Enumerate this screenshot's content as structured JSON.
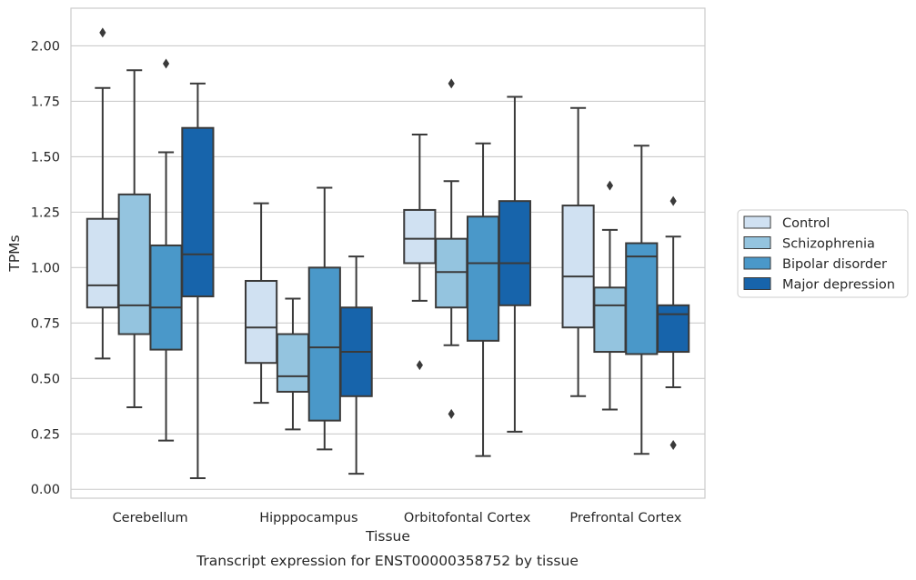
{
  "chart_data": {
    "type": "boxplot",
    "caption": "Transcript expression for ENST00000358752 by tissue",
    "xlabel": "Tissue",
    "ylabel": "TPMs",
    "ylim": [
      -0.04,
      2.17
    ],
    "yticks": [
      0.0,
      0.25,
      0.5,
      0.75,
      1.0,
      1.25,
      1.5,
      1.75,
      2.0
    ],
    "ytick_labels": [
      "0.00",
      "0.25",
      "0.50",
      "0.75",
      "1.00",
      "1.25",
      "1.50",
      "1.75",
      "2.00"
    ],
    "grid": true,
    "legend_position": "right",
    "categories": [
      "Cerebellum",
      "Hipppocampus",
      "Orbitofontal Cortex",
      "Prefrontal Cortex"
    ],
    "series": [
      {
        "name": "Control",
        "color": "#d0e1f2",
        "boxes": [
          {
            "whisker_low": 0.59,
            "q1": 0.82,
            "median": 0.92,
            "q3": 1.22,
            "whisker_high": 1.81,
            "outliers": [
              2.06
            ]
          },
          {
            "whisker_low": 0.39,
            "q1": 0.57,
            "median": 0.73,
            "q3": 0.94,
            "whisker_high": 1.29,
            "outliers": []
          },
          {
            "whisker_low": 0.85,
            "q1": 1.02,
            "median": 1.13,
            "q3": 1.26,
            "whisker_high": 1.6,
            "outliers": [
              0.56
            ]
          },
          {
            "whisker_low": 0.42,
            "q1": 0.73,
            "median": 0.96,
            "q3": 1.28,
            "whisker_high": 1.72,
            "outliers": []
          }
        ]
      },
      {
        "name": "Schizophrenia",
        "color": "#94c4df",
        "boxes": [
          {
            "whisker_low": 0.37,
            "q1": 0.7,
            "median": 0.83,
            "q3": 1.33,
            "whisker_high": 1.89,
            "outliers": []
          },
          {
            "whisker_low": 0.27,
            "q1": 0.44,
            "median": 0.51,
            "q3": 0.7,
            "whisker_high": 0.86,
            "outliers": []
          },
          {
            "whisker_low": 0.65,
            "q1": 0.82,
            "median": 0.98,
            "q3": 1.13,
            "whisker_high": 1.39,
            "outliers": [
              1.83,
              0.34
            ]
          },
          {
            "whisker_low": 0.36,
            "q1": 0.62,
            "median": 0.83,
            "q3": 0.91,
            "whisker_high": 1.17,
            "outliers": [
              1.37
            ]
          }
        ]
      },
      {
        "name": "Bipolar disorder",
        "color": "#4a98c9",
        "boxes": [
          {
            "whisker_low": 0.22,
            "q1": 0.63,
            "median": 0.82,
            "q3": 1.1,
            "whisker_high": 1.52,
            "outliers": [
              1.92
            ]
          },
          {
            "whisker_low": 0.18,
            "q1": 0.31,
            "median": 0.64,
            "q3": 1.0,
            "whisker_high": 1.36,
            "outliers": []
          },
          {
            "whisker_low": 0.15,
            "q1": 0.67,
            "median": 1.02,
            "q3": 1.23,
            "whisker_high": 1.56,
            "outliers": []
          },
          {
            "whisker_low": 0.16,
            "q1": 0.61,
            "median": 1.05,
            "q3": 1.11,
            "whisker_high": 1.55,
            "outliers": []
          }
        ]
      },
      {
        "name": "Major depression",
        "color": "#1764ab",
        "boxes": [
          {
            "whisker_low": 0.05,
            "q1": 0.87,
            "median": 1.06,
            "q3": 1.63,
            "whisker_high": 1.83,
            "outliers": []
          },
          {
            "whisker_low": 0.07,
            "q1": 0.42,
            "median": 0.62,
            "q3": 0.82,
            "whisker_high": 1.05,
            "outliers": []
          },
          {
            "whisker_low": 0.26,
            "q1": 0.83,
            "median": 1.02,
            "q3": 1.3,
            "whisker_high": 1.77,
            "outliers": []
          },
          {
            "whisker_low": 0.46,
            "q1": 0.62,
            "median": 0.79,
            "q3": 0.83,
            "whisker_high": 1.14,
            "outliers": [
              1.3,
              0.2
            ]
          }
        ]
      }
    ]
  }
}
